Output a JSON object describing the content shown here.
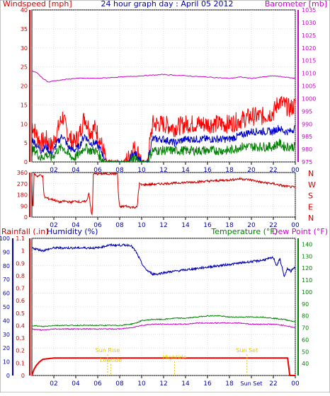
{
  "chart_data": [
    {
      "type": "line",
      "title": "24 hour graph day : April 05 2012",
      "ylabel_left": "Windspeed [mph]",
      "ylabel_right": "Barometer [mb]",
      "x_ticks": [
        "02",
        "04",
        "06",
        "08",
        "10",
        "12",
        "14",
        "16",
        "18",
        "20",
        "22",
        "00"
      ],
      "ylim_left": [
        0,
        40
      ],
      "left_ticks": [
        "0",
        "5",
        "10",
        "15",
        "20",
        "25",
        "30",
        "35",
        "40"
      ],
      "ylim_right": [
        975,
        1035
      ],
      "right_ticks": [
        "975",
        "980",
        "985",
        "990",
        "995",
        "1000",
        "1005",
        "1010",
        "1015",
        "1020",
        "1025",
        "1030",
        "1035"
      ],
      "series": [
        {
          "key": "gust",
          "color": "#ff0000",
          "x": [
            0,
            0.3,
            0.8,
            1.3,
            1.8,
            2.3,
            2.8,
            3.3,
            3.8,
            4.3,
            4.8,
            5.3,
            5.8,
            6.3,
            6.8,
            7.3,
            7.8,
            8.3,
            8.8,
            9.2,
            9.5,
            9.8,
            10.0,
            10.5,
            11,
            12,
            13,
            14,
            15,
            16,
            17,
            18,
            19,
            20,
            21,
            22,
            22.5,
            23,
            23.5,
            24
          ],
          "y": [
            10,
            8,
            5,
            6,
            4,
            8,
            12,
            7,
            5,
            7,
            12,
            8,
            9,
            5,
            0,
            0,
            0,
            0,
            1,
            4,
            3,
            2,
            0,
            0,
            10,
            10,
            9,
            10,
            10,
            10,
            10,
            10,
            11,
            12,
            12,
            13,
            16,
            15,
            14,
            15
          ]
        },
        {
          "key": "wind",
          "color": "#0000cc",
          "x": [
            0,
            0.3,
            0.8,
            1.3,
            1.8,
            2.3,
            2.8,
            3.3,
            3.8,
            4.3,
            4.8,
            5.3,
            5.8,
            6.3,
            6.8,
            7.3,
            7.8,
            8.3,
            8.8,
            9.2,
            9.5,
            9.8,
            10.0,
            10.5,
            11,
            12,
            13,
            14,
            15,
            16,
            17,
            18,
            19,
            20,
            21,
            22,
            22.5,
            23,
            23.5,
            24
          ],
          "y": [
            6,
            5,
            3,
            4,
            2,
            5,
            7,
            4,
            3,
            4,
            7,
            5,
            5,
            3,
            0,
            0,
            0,
            0,
            0,
            2,
            2,
            1,
            0,
            0,
            6,
            6,
            5,
            6,
            6,
            6,
            6,
            6,
            7,
            8,
            8,
            8,
            9,
            8,
            8,
            9
          ]
        },
        {
          "key": "wind_avg",
          "color": "#008000",
          "x": [
            0,
            0.3,
            0.8,
            1.3,
            1.8,
            2.3,
            2.8,
            3.3,
            3.8,
            4.3,
            4.8,
            5.3,
            5.8,
            6.3,
            6.8,
            7.3,
            7.8,
            8.3,
            8.8,
            9.2,
            9.5,
            9.8,
            10.0,
            10.5,
            11,
            12,
            13,
            14,
            15,
            16,
            17,
            18,
            19,
            20,
            21,
            22,
            22.5,
            23,
            23.5,
            24
          ],
          "y": [
            3,
            3,
            1,
            2,
            1,
            3,
            4,
            2,
            1,
            2,
            4,
            3,
            3,
            1,
            0,
            0,
            0,
            0,
            0,
            1,
            1,
            0,
            0,
            0,
            3,
            3,
            3,
            3,
            3,
            3,
            3,
            3,
            4,
            4,
            4,
            4,
            5,
            4,
            4,
            4
          ]
        },
        {
          "key": "barometer",
          "color": "#cc00cc",
          "axis": "right",
          "x": [
            0,
            0.5,
            1,
            1.5,
            2,
            3,
            4,
            6,
            8,
            10,
            12,
            14,
            16,
            18,
            19,
            20,
            21,
            22,
            23,
            24
          ],
          "y": [
            1011,
            1010,
            1008,
            1006.5,
            1007,
            1007.5,
            1008,
            1008,
            1008.5,
            1009,
            1009.5,
            1009,
            1008.5,
            1008,
            1008.5,
            1008,
            1008.5,
            1009,
            1008.5,
            1008
          ]
        }
      ]
    },
    {
      "type": "line",
      "title": "",
      "ylabel_right_letters": [
        "N",
        "W",
        "S",
        "E",
        "N"
      ],
      "x_ticks": [
        "02",
        "04",
        "06",
        "08",
        "10",
        "12",
        "14",
        "16",
        "18",
        "20",
        "22",
        "00"
      ],
      "ylim": [
        0,
        360
      ],
      "left_ticks": [
        "0",
        "90",
        "180",
        "270",
        "360"
      ],
      "extra_left_ticks": [
        "45",
        "135",
        "225",
        "315"
      ],
      "series": [
        {
          "key": "direction",
          "color": "#cc0000",
          "x": [
            0,
            0.1,
            0.2,
            0.5,
            0.8,
            1.0,
            1.1,
            1.2,
            1.5,
            2,
            2.5,
            3,
            3.5,
            4,
            4.5,
            5,
            5.2,
            5.4,
            5.5,
            5.6,
            7,
            7.8,
            7.9,
            8,
            8.5,
            9,
            9.6,
            9.7,
            9.8,
            10,
            12,
            14,
            16,
            18,
            19,
            20,
            21,
            22,
            23,
            24
          ],
          "y": [
            330,
            20,
            350,
            330,
            340,
            330,
            170,
            160,
            150,
            140,
            120,
            130,
            120,
            130,
            120,
            130,
            200,
            40,
            10,
            350,
            350,
            350,
            160,
            80,
            90,
            80,
            80,
            200,
            270,
            260,
            270,
            280,
            290,
            300,
            310,
            300,
            280,
            270,
            250,
            240
          ]
        }
      ]
    },
    {
      "type": "line",
      "title": "",
      "ylabel_left": "Rainfall (.in)",
      "ylabel_left2": "Humidity (%)",
      "ylabel_right": "Temperature (°F)",
      "ylabel_right2": "Dew Point (°F)",
      "x_ticks": [
        "02",
        "04",
        "06",
        "08",
        "10",
        "12",
        "14",
        "16",
        "18",
        "Sun Set",
        "22",
        "00"
      ],
      "ylim_humidity": [
        0,
        100
      ],
      "humidity_ticks": [
        "0",
        "10",
        "20",
        "30",
        "40",
        "50",
        "60",
        "70",
        "80",
        "90",
        "100"
      ],
      "ylim_rain": [
        0,
        1.1
      ],
      "rain_ticks": [
        "0",
        "0.1",
        "0.2",
        "0.3",
        "0.4",
        "0.5",
        "0.6",
        "0.7",
        "0.8",
        "0.9",
        "1",
        "1.1"
      ],
      "ylim_temp": [
        30,
        145
      ],
      "temp_ticks": [
        "40",
        "50",
        "60",
        "70",
        "80",
        "90",
        "100",
        "110",
        "120",
        "130",
        "140"
      ],
      "annotations": [
        {
          "text": "Sun Rise",
          "hour": 6.9
        },
        {
          "text": "Lowtide",
          "hour": 7.2
        },
        {
          "text": "Hightide",
          "hour": 13.0
        },
        {
          "text": "Sun Set",
          "hour": 19.6
        }
      ],
      "series": [
        {
          "key": "humidity",
          "color": "#0000aa",
          "axis": "humidity",
          "x": [
            0,
            0.5,
            1,
            2,
            3,
            4,
            5,
            6,
            7,
            8,
            8.5,
            9,
            9.5,
            10,
            10.3,
            10.6,
            11,
            11.5,
            12,
            13,
            14,
            15,
            16,
            17,
            18,
            19,
            20,
            21,
            21.5,
            22,
            22.3,
            22.6,
            23,
            23.3,
            23.6,
            24
          ],
          "y": [
            93,
            92,
            91,
            93,
            93,
            93,
            93,
            93,
            95,
            95,
            95,
            95,
            90,
            82,
            78,
            76,
            74,
            74,
            75,
            76,
            77,
            78,
            79,
            80,
            81,
            82,
            83,
            84,
            85,
            86,
            80,
            85,
            72,
            78,
            76,
            79
          ]
        },
        {
          "key": "temperature",
          "color": "#008000",
          "axis": "temp",
          "x": [
            0,
            1,
            2,
            3,
            4,
            5,
            6,
            7,
            8,
            9,
            9.5,
            10,
            11,
            12,
            13,
            14,
            15,
            16,
            17,
            18,
            19,
            20,
            21,
            22,
            23,
            24
          ],
          "y": [
            72,
            71,
            72,
            72,
            72,
            72,
            72,
            72,
            72,
            73,
            74,
            76,
            77,
            77,
            78,
            78,
            79,
            80,
            80,
            79,
            79,
            79,
            79,
            78,
            77,
            75
          ]
        },
        {
          "key": "dewpoint",
          "color": "#cc00cc",
          "axis": "temp",
          "x": [
            0,
            1,
            2,
            3,
            4,
            5,
            6,
            7,
            8,
            9,
            9.5,
            10,
            11,
            12,
            13,
            14,
            15,
            16,
            17,
            18,
            19,
            20,
            21,
            22,
            23,
            24
          ],
          "y": [
            69,
            68,
            69,
            69,
            69,
            69,
            69,
            69,
            69,
            70,
            71,
            72,
            73,
            73,
            73,
            73,
            74,
            74,
            74,
            74,
            74,
            73,
            73,
            73,
            72,
            70
          ]
        },
        {
          "key": "rain",
          "color": "#ee0000",
          "axis": "rain",
          "x": [
            0,
            0.2,
            0.4,
            0.7,
            1,
            2,
            4,
            6,
            8,
            10,
            12,
            14,
            16,
            18,
            20,
            22,
            23.2,
            23.3,
            23.5,
            24
          ],
          "y": [
            0,
            0.05,
            0.08,
            0.11,
            0.13,
            0.14,
            0.14,
            0.14,
            0.14,
            0.14,
            0.14,
            0.14,
            0.14,
            0.14,
            0.14,
            0.14,
            0.14,
            0.14,
            0,
            0
          ]
        }
      ]
    }
  ]
}
